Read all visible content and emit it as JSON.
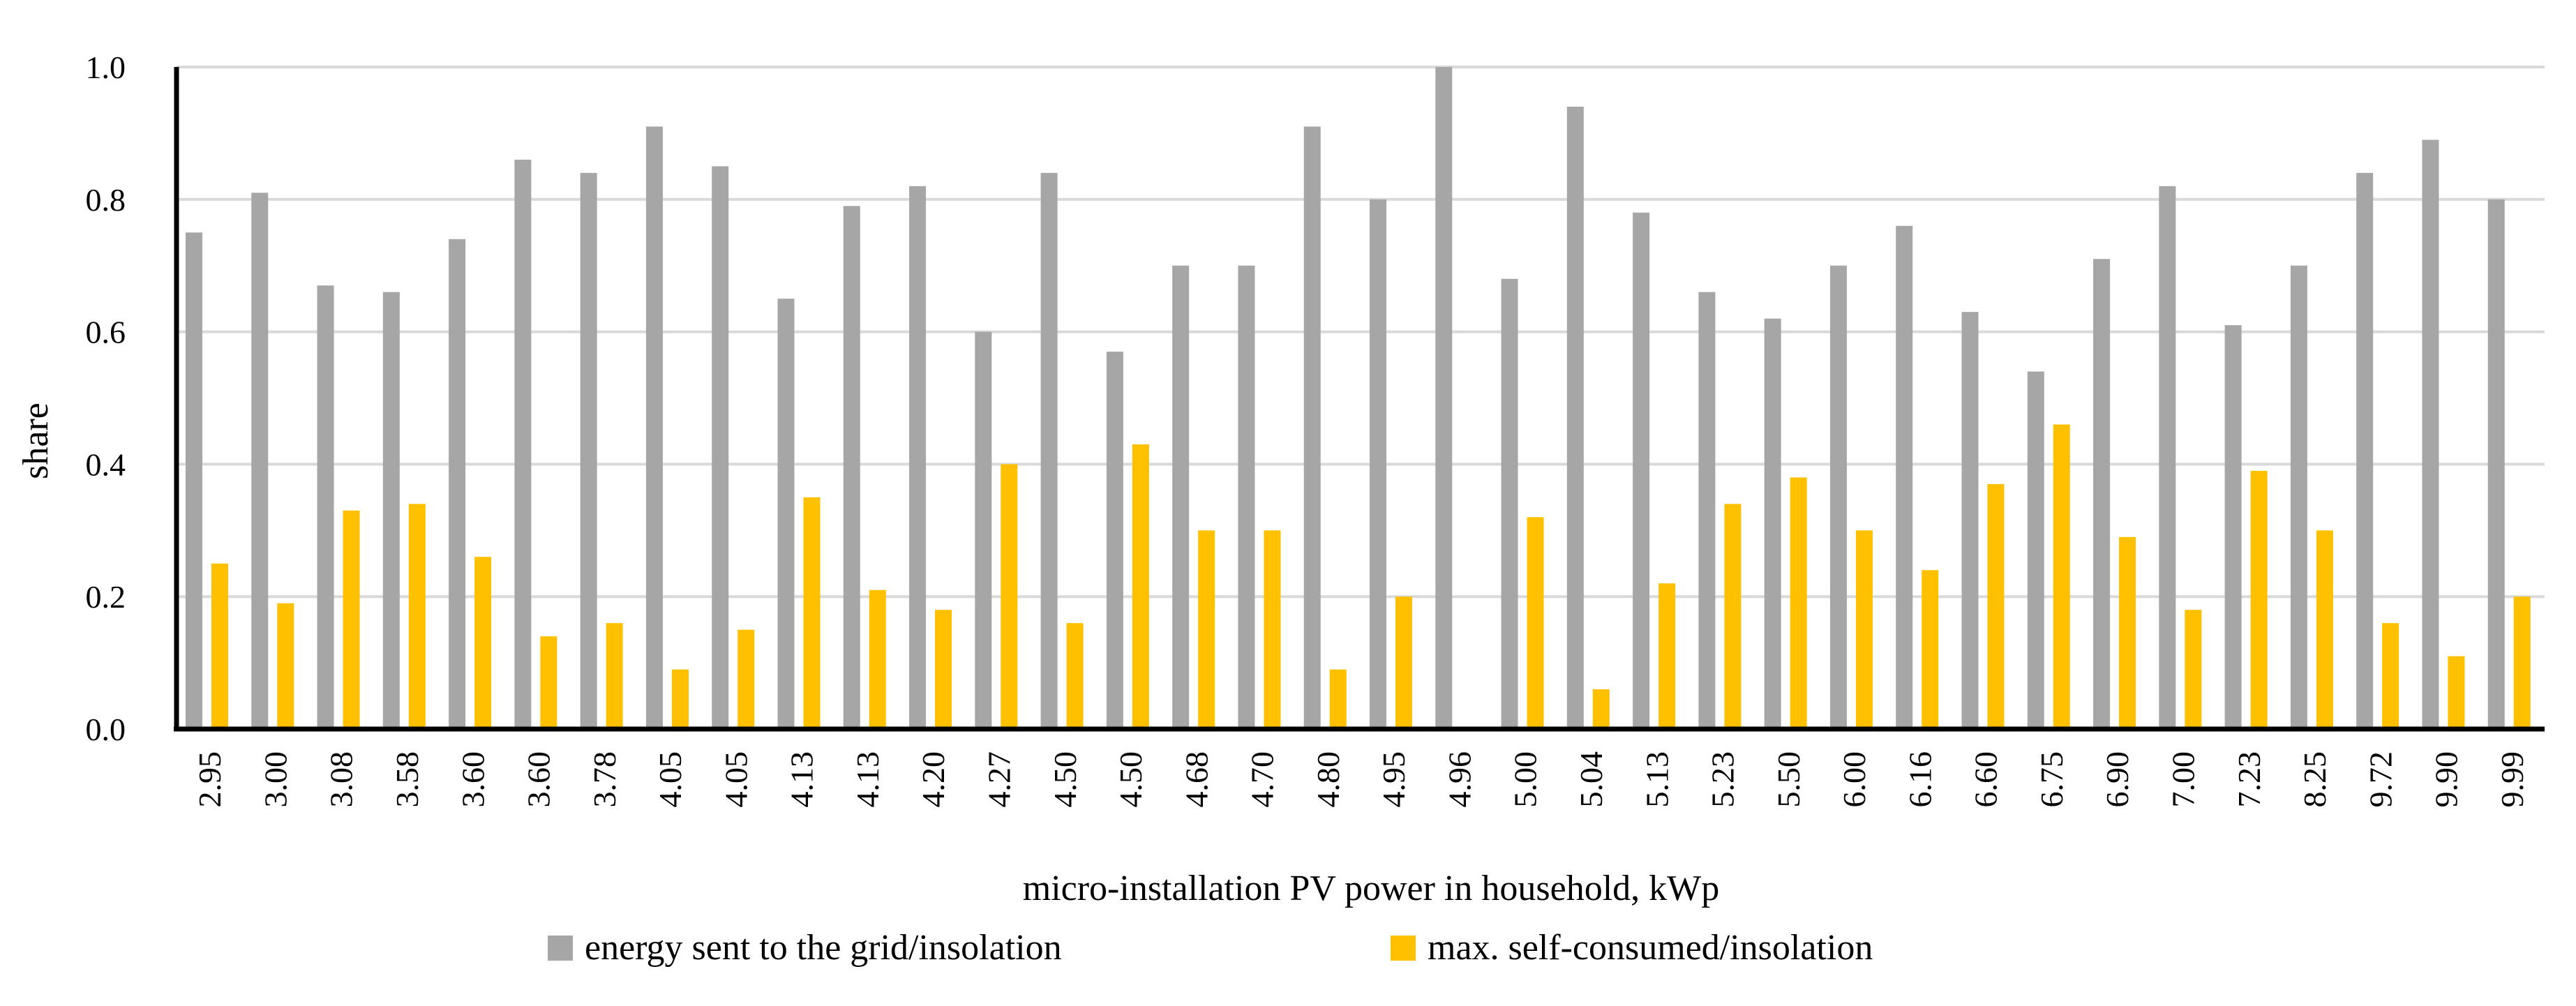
{
  "chart_data": {
    "type": "bar",
    "title": "",
    "xlabel": "micro-installation PV power in household, kWp",
    "ylabel": "share",
    "ylim": [
      0,
      1.0
    ],
    "yticks": [
      "0.0",
      "0.2",
      "0.4",
      "0.6",
      "0.8",
      "1.0"
    ],
    "grid": true,
    "legend_position": "bottom",
    "categories": [
      "2.95",
      "3.00",
      "3.08",
      "3.58",
      "3.60",
      "3.60",
      "3.78",
      "4.05",
      "4.05",
      "4.13",
      "4.13",
      "4.20",
      "4.27",
      "4.50",
      "4.50",
      "4.68",
      "4.70",
      "4.80",
      "4.95",
      "4.96",
      "5.00",
      "5.04",
      "5.13",
      "5.23",
      "5.50",
      "6.00",
      "6.16",
      "6.60",
      "6.75",
      "6.90",
      "7.00",
      "7.23",
      "8.25",
      "9.72",
      "9.90",
      "9.99"
    ],
    "series": [
      {
        "name": "energy sent to the grid/insolation",
        "color": "#a6a6a6",
        "values": [
          0.75,
          0.81,
          0.67,
          0.66,
          0.74,
          0.86,
          0.84,
          0.91,
          0.85,
          0.65,
          0.79,
          0.82,
          0.6,
          0.84,
          0.57,
          0.7,
          0.7,
          0.91,
          0.8,
          1.0,
          0.68,
          0.94,
          0.78,
          0.66,
          0.62,
          0.7,
          0.76,
          0.63,
          0.54,
          0.71,
          0.82,
          0.61,
          0.7,
          0.84,
          0.89,
          0.8
        ]
      },
      {
        "name": "max. self-consumed/insolation",
        "color": "#ffc000",
        "values": [
          0.25,
          0.19,
          0.33,
          0.34,
          0.26,
          0.14,
          0.16,
          0.09,
          0.15,
          0.35,
          0.21,
          0.18,
          0.4,
          0.16,
          0.43,
          0.3,
          0.3,
          0.09,
          0.2,
          0.0,
          0.32,
          0.06,
          0.22,
          0.34,
          0.38,
          0.3,
          0.24,
          0.37,
          0.46,
          0.29,
          0.18,
          0.39,
          0.3,
          0.16,
          0.11,
          0.2
        ]
      }
    ]
  }
}
